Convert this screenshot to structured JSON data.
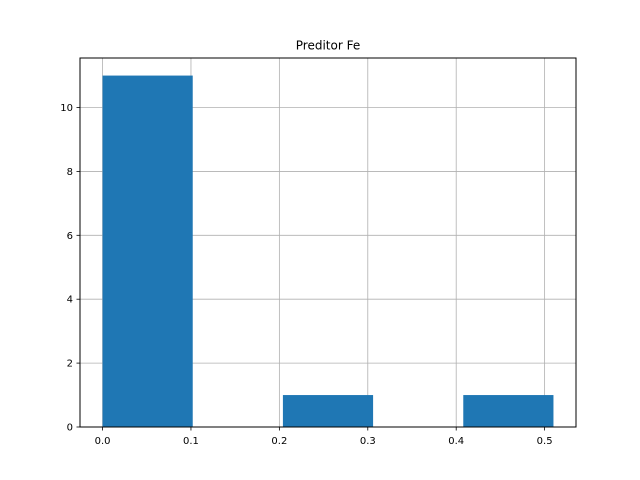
{
  "chart_data": {
    "type": "bar",
    "title": "Preditor Fe",
    "xlabel": "",
    "ylabel": "",
    "bins": [
      {
        "x0": 0.0,
        "x1": 0.102,
        "count": 11
      },
      {
        "x0": 0.204,
        "x1": 0.306,
        "count": 1
      },
      {
        "x0": 0.408,
        "x1": 0.51,
        "count": 1
      }
    ],
    "xlim": [
      -0.0255,
      0.5355
    ],
    "ylim": [
      0,
      11.55
    ],
    "xticks": [
      0.0,
      0.1,
      0.2,
      0.3,
      0.4,
      0.5
    ],
    "xtick_labels": [
      "0.0",
      "0.1",
      "0.2",
      "0.3",
      "0.4",
      "0.5"
    ],
    "yticks": [
      0,
      2,
      4,
      6,
      8,
      10
    ],
    "ytick_labels": [
      "0",
      "2",
      "4",
      "6",
      "8",
      "10"
    ],
    "grid": true,
    "bar_color": "#1f77b4",
    "grid_color": "#b0b0b0"
  }
}
